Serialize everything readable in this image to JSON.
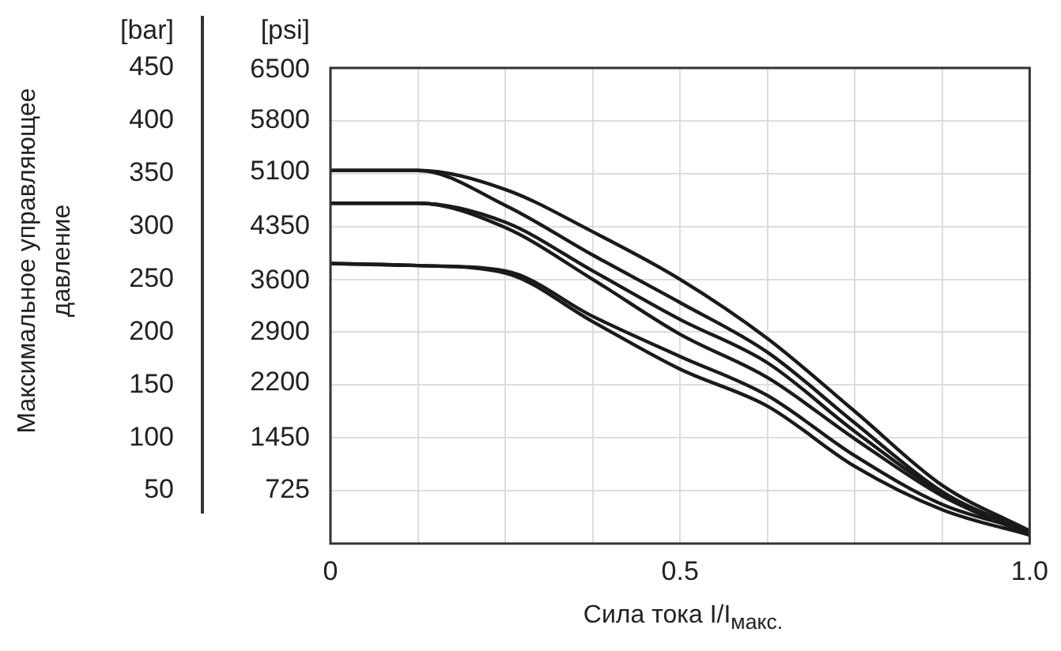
{
  "chart_data": {
    "type": "line",
    "xlabel": "Сила тока I/I$_{макс.}$",
    "ylabel": "Максимальное управляющее давление",
    "annotations": [
      "[bar]",
      "[psi]"
    ],
    "x": [
      0,
      0.125,
      0.25,
      0.375,
      0.5,
      0.625,
      0.75,
      0.875,
      1
    ],
    "series": [
      {
        "color": "#1a1a1a",
        "values": [
          353,
          353,
          335,
          295,
          250,
          194,
          125,
          55,
          12
        ]
      },
      {
        "color": "#1a1a1a",
        "values": [
          353,
          353,
          320,
          273,
          228,
          181,
          114,
          49,
          9
        ]
      },
      {
        "color": "#1a1a1a",
        "values": [
          322,
          322,
          304,
          258,
          212,
          171,
          106,
          48,
          11
        ]
      },
      {
        "color": "#1a1a1a",
        "values": [
          322,
          322,
          299,
          250,
          198,
          157,
          99,
          45,
          8
        ]
      },
      {
        "color": "#1a1a1a",
        "values": [
          265,
          263,
          258,
          215,
          177,
          140,
          83,
          37,
          12
        ]
      },
      {
        "color": "#1a1a1a",
        "values": [
          265,
          263,
          256,
          210,
          165,
          130,
          73,
          32,
          8
        ]
      }
    ],
    "xlim": [
      0,
      1
    ],
    "xticks": [
      0,
      {
        "value": 0.125,
        "label": null
      },
      {
        "value": 0.25,
        "label": null
      },
      {
        "value": 0.375,
        "label": null
      },
      0.5,
      {
        "value": 0.625,
        "label": null
      },
      {
        "value": 0.75,
        "label": null
      },
      {
        "value": 0.875,
        "label": null
      },
      {
        "value": 1,
        "label": "1.0"
      }
    ],
    "ylim": [
      0,
      450
    ],
    "yticks": [
      50,
      100,
      150,
      200,
      250,
      300,
      350,
      400,
      450
    ],
    "y2lim": [
      0,
      6525
    ],
    "y2ticks": [
      725,
      1450,
      2200,
      2900,
      3600,
      4350,
      5100,
      5800,
      6500
    ],
    "grid": true,
    "marker": "none"
  }
}
